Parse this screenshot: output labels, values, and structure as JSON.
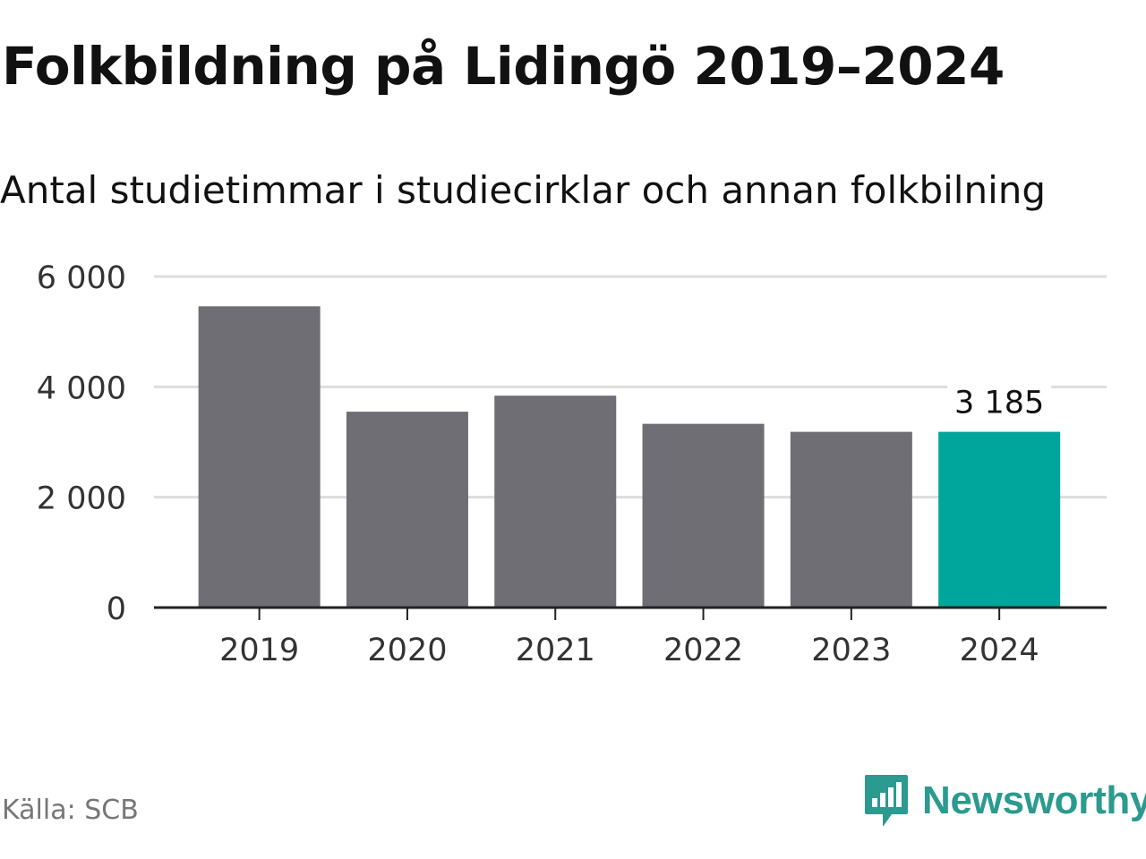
{
  "header": {
    "title": "Folkbildning på Lidingö 2019–2024",
    "subtitle": "Antal studietimmar i studiecirklar och annan folkbilning"
  },
  "footer": {
    "source": "Källa: SCB",
    "brand": "Newsworthy",
    "brand_icon": "newsworthy-logo-icon"
  },
  "colors": {
    "bar": "#6f6e74",
    "highlight": "#00a59b",
    "grid": "#dddddd",
    "axis": "#222222",
    "brand": "#2b9a8f"
  },
  "chart_data": {
    "type": "bar",
    "categories": [
      "2019",
      "2020",
      "2021",
      "2022",
      "2023",
      "2024"
    ],
    "values": [
      5460,
      3550,
      3840,
      3330,
      3185,
      3185
    ],
    "highlight_index": 5,
    "data_labels": [
      {
        "index": 5,
        "text": "3 185"
      }
    ],
    "yticks": [
      0,
      2000,
      4000,
      6000
    ],
    "ytick_labels": [
      "0",
      "2 000",
      "4 000",
      "6 000"
    ],
    "ylim": [
      0,
      6000
    ],
    "grid": true,
    "legend": "none",
    "title": "Folkbildning på Lidingö 2019–2024",
    "subtitle": "Antal studietimmar i studiecirklar och annan folkbilning"
  }
}
